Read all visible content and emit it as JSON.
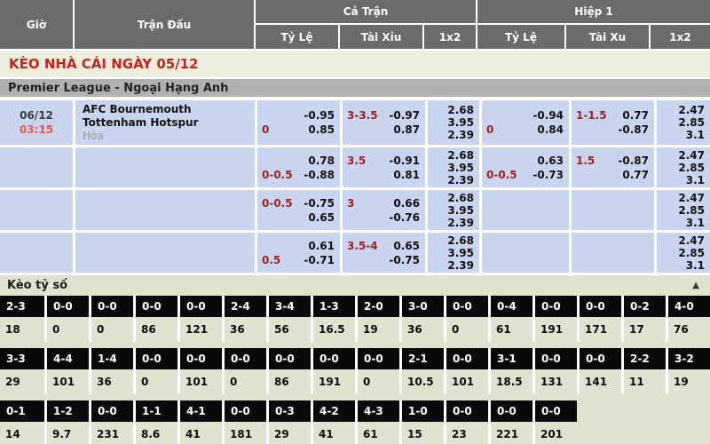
{
  "colors": {
    "accent_red": "#c5231f",
    "odds_label_red": "#9e2222",
    "time_red": "#f2544e",
    "odds_cell_blue": "#c9d4ee",
    "header_gray": "#6b6b6b",
    "league_gray": "#b0b0b0",
    "score_section_olive": "#dfe2ce",
    "score_cell_black": "#0a0a0a"
  },
  "header": {
    "time": "Giờ",
    "match": "Trận Đấu",
    "full_match": "Cả Trận",
    "first_half": "Hiệp 1",
    "ft_subs": [
      "Tỷ Lệ",
      "Tài Xỉu",
      "1x2"
    ],
    "h1_subs": [
      "Tỷ Lệ",
      "Tài Xu",
      "1x2"
    ]
  },
  "title": "KÈO NHÀ CÁI NGÀY 05/12",
  "league": "Premier League - Ngoại Hạng Anh",
  "odds_rows": [
    {
      "date": "06/12",
      "time": "03:15",
      "home": "AFC Bournemouth",
      "away": "Tottenham Hotspur",
      "draw": "Hòa",
      "ft_hdp": {
        "l1": "",
        "v1": "-0.95",
        "l2": "0",
        "v2": "0.85"
      },
      "ft_ou": {
        "l1": "3-3.5",
        "v1": "-0.97",
        "l2": "",
        "v2": "0.87"
      },
      "ft_1x2": [
        "2.68",
        "3.95",
        "2.39"
      ],
      "h1_hdp": {
        "l1": "",
        "v1": "-0.94",
        "l2": "0",
        "v2": "0.84"
      },
      "h1_ou": {
        "l1": "1-1.5",
        "v1": "0.77",
        "l2": "",
        "v2": "-0.87"
      },
      "h1_1x2": [
        "2.47",
        "2.85",
        "3.1"
      ]
    },
    {
      "ft_hdp": {
        "l1": "",
        "v1": "0.78",
        "l2": "0-0.5",
        "v2": "-0.88"
      },
      "ft_ou": {
        "l1": "3.5",
        "v1": "-0.91",
        "l2": "",
        "v2": "0.81"
      },
      "ft_1x2": [
        "2.68",
        "3.95",
        "2.39"
      ],
      "h1_hdp": {
        "l1": "",
        "v1": "0.63",
        "l2": "0-0.5",
        "v2": "-0.73"
      },
      "h1_ou": {
        "l1": "1.5",
        "v1": "-0.87",
        "l2": "",
        "v2": "0.77"
      },
      "h1_1x2": [
        "2.47",
        "2.85",
        "3.1"
      ]
    },
    {
      "ft_hdp": {
        "l1": "0-0.5",
        "v1": "-0.75",
        "l2": "",
        "v2": "0.65"
      },
      "ft_ou": {
        "l1": "3",
        "v1": "0.66",
        "l2": "",
        "v2": "-0.76"
      },
      "ft_1x2": [
        "2.68",
        "3.95",
        "2.39"
      ],
      "h1_hdp": null,
      "h1_ou": null,
      "h1_1x2": [
        "2.47",
        "2.85",
        "3.1"
      ]
    },
    {
      "ft_hdp": {
        "l1": "",
        "v1": "0.61",
        "l2": "0.5",
        "v2": "-0.71"
      },
      "ft_ou": {
        "l1": "3.5-4",
        "v1": "0.65",
        "l2": "",
        "v2": "-0.75"
      },
      "ft_1x2": [
        "2.68",
        "3.95",
        "2.39"
      ],
      "h1_hdp": null,
      "h1_ou": null,
      "h1_1x2": [
        "2.47",
        "2.85",
        "3.1"
      ]
    }
  ],
  "score_section": {
    "title": "Kèo tỷ số",
    "collapse_icon": "▲",
    "rows": [
      [
        {
          "s": "2-3",
          "v": "18"
        },
        {
          "s": "0-0",
          "v": "0"
        },
        {
          "s": "0-0",
          "v": "0"
        },
        {
          "s": "0-0",
          "v": "86"
        },
        {
          "s": "0-0",
          "v": "121"
        },
        {
          "s": "2-4",
          "v": "36"
        },
        {
          "s": "3-4",
          "v": "56"
        },
        {
          "s": "1-3",
          "v": "16.5"
        },
        {
          "s": "2-0",
          "v": "19"
        },
        {
          "s": "3-0",
          "v": "36"
        },
        {
          "s": "0-0",
          "v": "0"
        },
        {
          "s": "0-4",
          "v": "61"
        },
        {
          "s": "0-0",
          "v": "191"
        },
        {
          "s": "0-0",
          "v": "171"
        },
        {
          "s": "0-2",
          "v": "17"
        },
        {
          "s": "4-0",
          "v": "76"
        }
      ],
      [
        {
          "s": "3-3",
          "v": "29"
        },
        {
          "s": "4-4",
          "v": "101"
        },
        {
          "s": "1-4",
          "v": "36"
        },
        {
          "s": "0-0",
          "v": "0"
        },
        {
          "s": "0-0",
          "v": "101"
        },
        {
          "s": "0-0",
          "v": "0"
        },
        {
          "s": "0-0",
          "v": "86"
        },
        {
          "s": "0-0",
          "v": "191"
        },
        {
          "s": "0-0",
          "v": "0"
        },
        {
          "s": "2-1",
          "v": "10.5"
        },
        {
          "s": "0-0",
          "v": "101"
        },
        {
          "s": "3-1",
          "v": "18.5"
        },
        {
          "s": "0-0",
          "v": "131"
        },
        {
          "s": "0-0",
          "v": "141"
        },
        {
          "s": "2-2",
          "v": "11"
        },
        {
          "s": "3-2",
          "v": "19"
        }
      ],
      [
        {
          "s": "0-1",
          "v": "14"
        },
        {
          "s": "1-2",
          "v": "9.7"
        },
        {
          "s": "0-0",
          "v": "231"
        },
        {
          "s": "1-1",
          "v": "8.6"
        },
        {
          "s": "4-1",
          "v": "41"
        },
        {
          "s": "0-0",
          "v": "181"
        },
        {
          "s": "0-3",
          "v": "29"
        },
        {
          "s": "4-2",
          "v": "41"
        },
        {
          "s": "4-3",
          "v": "61"
        },
        {
          "s": "1-0",
          "v": "15"
        },
        {
          "s": "0-0",
          "v": "23"
        },
        {
          "s": "0-0",
          "v": "221"
        },
        {
          "s": "0-0",
          "v": "201"
        },
        {
          "s": "",
          "v": ""
        },
        {
          "s": "",
          "v": ""
        },
        {
          "s": "",
          "v": ""
        }
      ]
    ]
  }
}
